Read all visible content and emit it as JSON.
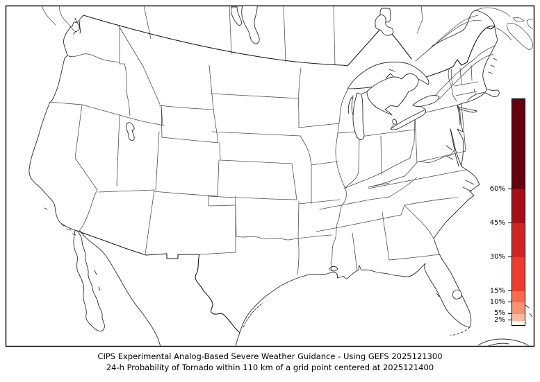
{
  "figure": {
    "caption_line1": "CIPS Experimental Analog-Based Severe Weather Guidance - Using GEFS 2025121300",
    "caption_line2": "24-h Probability of Tornado within 110 km of a grid point centered at 2025121400"
  },
  "map": {
    "region": "CONUS",
    "background_color": "#ffffff",
    "state_line_color": "#4d4d4d",
    "coast_line_color": "#2b2b2b",
    "national_border_color": "#1a1a1a",
    "probability_areas_at_or_above_2_percent": []
  },
  "colorbar": {
    "orientation": "vertical",
    "unit": "%",
    "value_min": 0,
    "value_max": 100,
    "segments": [
      {
        "from": 60,
        "to": 100,
        "color": "#67000d"
      },
      {
        "from": 45,
        "to": 60,
        "color": "#a50f15"
      },
      {
        "from": 30,
        "to": 45,
        "color": "#d02523"
      },
      {
        "from": 15,
        "to": 30,
        "color": "#ef3b2c"
      },
      {
        "from": 10,
        "to": 15,
        "color": "#fb6a4a"
      },
      {
        "from": 5,
        "to": 10,
        "color": "#fc9272"
      },
      {
        "from": 2,
        "to": 5,
        "color": "#fcbba1"
      },
      {
        "from": 0,
        "to": 2,
        "color": "#ffffff"
      }
    ],
    "ticks": [
      {
        "value": 60,
        "label": "60%"
      },
      {
        "value": 45,
        "label": "45%"
      },
      {
        "value": 30,
        "label": "30%"
      },
      {
        "value": 15,
        "label": "15%"
      },
      {
        "value": 10,
        "label": "10%"
      },
      {
        "value": 5,
        "label": "5%"
      },
      {
        "value": 2,
        "label": "2%"
      }
    ]
  }
}
